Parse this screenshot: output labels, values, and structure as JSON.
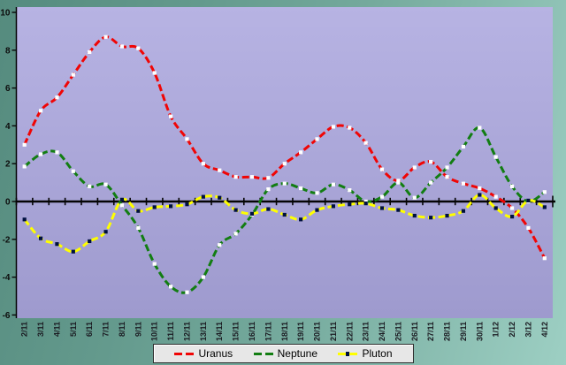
{
  "colors": {
    "background_teal_dark": "#558b7e",
    "background_teal_light": "#9dcfc3",
    "plot_top": "#b7b3e3",
    "plot_bottom": "#9e9ace",
    "axis": "#050505",
    "uranus_red": "#f00505",
    "neptune_green": "#127d12",
    "pluton_yellow": "#ffff00",
    "marker_white": "#ffffff",
    "marker_navy": "#001040",
    "legend_bg": "#e7e7e7"
  },
  "legend": {
    "items": [
      "Uranus",
      "Neptune",
      "Pluton"
    ]
  },
  "chart_data": {
    "type": "line",
    "title": "",
    "xlabel": "",
    "ylabel": "",
    "grid": false,
    "legend_position": "bottom",
    "line_style": "dashed-smooth",
    "ylim": [
      -6.2,
      10.3
    ],
    "y_ticks": [
      10,
      8,
      6,
      4,
      2,
      0,
      -2,
      -4,
      -6
    ],
    "x_labels": [
      "2/11",
      "3/11",
      "4/11",
      "5/11",
      "6/11",
      "7/11",
      "8/11",
      "9/11",
      "10/11",
      "11/11",
      "12/11",
      "13/11",
      "14/11",
      "15/11",
      "16/11",
      "17/11",
      "18/11",
      "19/11",
      "20/11",
      "21/11",
      "22/11",
      "23/11",
      "24/11",
      "25/11",
      "26/11",
      "27/11",
      "28/11",
      "29/11",
      "30/11",
      "1/12",
      "2/12",
      "3/12",
      "4/12"
    ],
    "series": [
      {
        "name": "Uranus",
        "color": "#f00505",
        "marker_color": "#ffffff",
        "values": [
          3.0,
          4.8,
          5.5,
          6.7,
          7.9,
          8.7,
          8.2,
          8.1,
          6.8,
          4.5,
          3.3,
          2.0,
          1.65,
          1.3,
          1.3,
          1.25,
          2.0,
          2.6,
          3.3,
          3.95,
          3.9,
          3.1,
          1.7,
          1.1,
          1.8,
          2.1,
          1.3,
          0.95,
          0.7,
          0.25,
          -0.35,
          -1.4,
          -3.0
        ]
      },
      {
        "name": "Neptune",
        "color": "#127d12",
        "marker_color": "#ffffff",
        "values": [
          1.85,
          2.5,
          2.6,
          1.6,
          0.8,
          0.9,
          -0.2,
          -1.4,
          -3.3,
          -4.5,
          -4.8,
          -4.0,
          -2.3,
          -1.7,
          -0.7,
          0.65,
          0.95,
          0.7,
          0.45,
          0.9,
          0.6,
          0.0,
          0.25,
          1.0,
          0.2,
          1.0,
          1.8,
          2.9,
          3.9,
          2.35,
          0.8,
          0.0,
          0.5
        ]
      },
      {
        "name": "Pluton",
        "color": "#ffff00",
        "marker_color": "#001040",
        "values": [
          -0.95,
          -1.95,
          -2.25,
          -2.65,
          -2.1,
          -1.6,
          0.1,
          -0.5,
          -0.3,
          -0.25,
          -0.15,
          0.25,
          0.2,
          -0.45,
          -0.65,
          -0.4,
          -0.7,
          -0.95,
          -0.45,
          -0.25,
          -0.15,
          -0.1,
          -0.35,
          -0.45,
          -0.75,
          -0.85,
          -0.75,
          -0.5,
          0.35,
          -0.35,
          -0.8,
          0.05,
          -0.3
        ]
      }
    ]
  }
}
